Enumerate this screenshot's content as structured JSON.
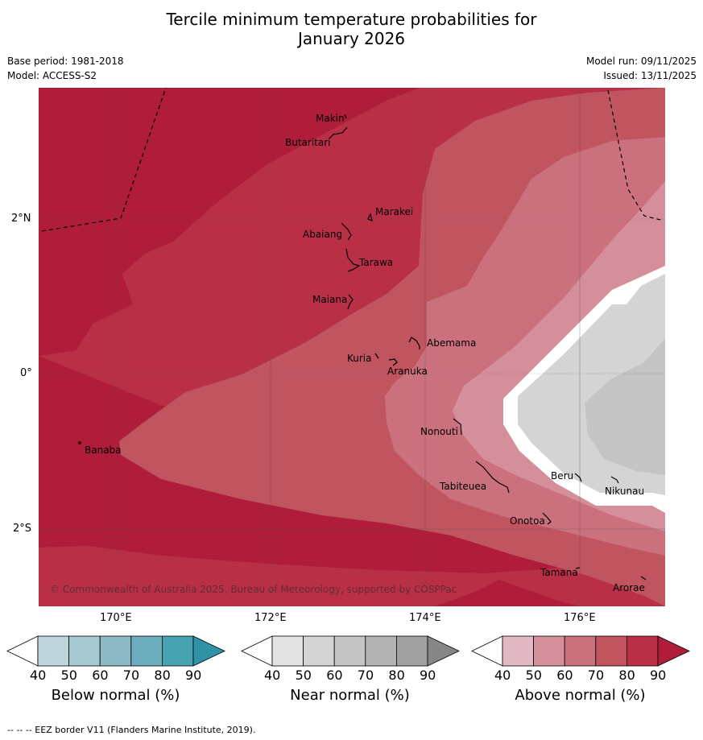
{
  "title_line1": "Tercile minimum temperature probabilities for",
  "title_line2": "January 2026",
  "base_period": "Base period: 1981-2018",
  "model": "Model: ACCESS-S2",
  "model_run": "Model run: 09/11/2025",
  "issued": "Issued: 13/11/2025",
  "copyright": "© Commonwealth of Australia 2025, Bureau of Meteorology, supported by COSPPac",
  "lon_ticks": [
    "170°E",
    "172°E",
    "174°E",
    "176°E"
  ],
  "lat_ticks": [
    "2°N",
    "0°",
    "2°S"
  ],
  "places": [
    "Makin",
    "Butaritari",
    "Marakei",
    "Abaiang",
    "Tarawa",
    "Maiana",
    "Abemama",
    "Kuria",
    "Aranuka",
    "Banaba",
    "Nonouti",
    "Tabiteuea",
    "Beru",
    "Nikunau",
    "Onotoa",
    "Tamana",
    "Arorae"
  ],
  "colorbars": [
    {
      "title": "Below normal (%)",
      "ticks": [
        "40",
        "50",
        "60",
        "70",
        "80",
        "90"
      ],
      "colors": [
        "#ffffff",
        "#bed5dc",
        "#a6c8d0",
        "#8cb9c4",
        "#6caebd",
        "#47a2b1",
        "#2f93a6"
      ]
    },
    {
      "title": "Near normal (%)",
      "ticks": [
        "40",
        "50",
        "60",
        "70",
        "80",
        "90"
      ],
      "colors": [
        "#ffffff",
        "#e3e3e3",
        "#d4d4d4",
        "#c4c4c4",
        "#b3b3b3",
        "#a0a0a0",
        "#868686"
      ]
    },
    {
      "title": "Above normal (%)",
      "ticks": [
        "40",
        "50",
        "60",
        "70",
        "80",
        "90"
      ],
      "colors": [
        "#ffffff",
        "#e2b9c2",
        "#d58f9a",
        "#ca717d",
        "#c0555f",
        "#b92f46",
        "#b01d3b"
      ]
    }
  ],
  "footer": "--  --  -- EEZ border V11 (Flanders Marine Institute, 2019)."
}
